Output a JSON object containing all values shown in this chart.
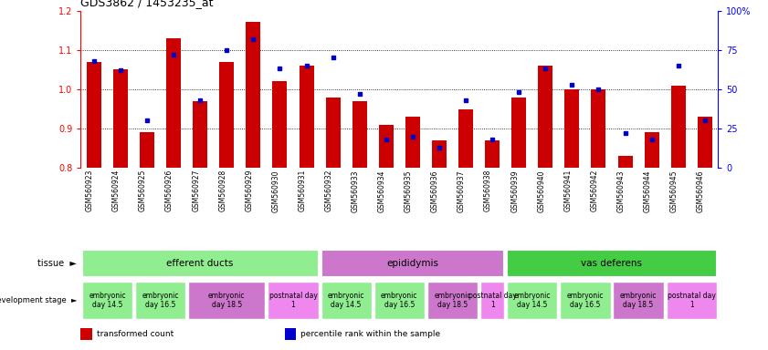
{
  "title": "GDS3862 / 1453235_at",
  "samples": [
    "GSM560923",
    "GSM560924",
    "GSM560925",
    "GSM560926",
    "GSM560927",
    "GSM560928",
    "GSM560929",
    "GSM560930",
    "GSM560931",
    "GSM560932",
    "GSM560933",
    "GSM560934",
    "GSM560935",
    "GSM560936",
    "GSM560937",
    "GSM560938",
    "GSM560939",
    "GSM560940",
    "GSM560941",
    "GSM560942",
    "GSM560943",
    "GSM560944",
    "GSM560945",
    "GSM560946"
  ],
  "red_values": [
    1.07,
    1.05,
    0.89,
    1.13,
    0.97,
    1.07,
    1.17,
    1.02,
    1.06,
    0.98,
    0.97,
    0.91,
    0.93,
    0.87,
    0.95,
    0.87,
    0.98,
    1.06,
    1.0,
    1.0,
    0.83,
    0.89,
    1.01,
    0.93
  ],
  "blue_values": [
    0.68,
    0.62,
    0.3,
    0.72,
    0.43,
    0.75,
    0.82,
    0.63,
    0.65,
    0.7,
    0.47,
    0.18,
    0.2,
    0.13,
    0.43,
    0.18,
    0.48,
    0.63,
    0.53,
    0.5,
    0.22,
    0.18,
    0.65,
    0.3
  ],
  "ymin": 0.8,
  "ymax": 1.2,
  "yticks": [
    0.8,
    0.9,
    1.0,
    1.1,
    1.2
  ],
  "right_yticks": [
    0,
    25,
    50,
    75,
    100
  ],
  "right_ytick_labels": [
    "0",
    "25",
    "50",
    "75",
    "100%"
  ],
  "tissues": [
    {
      "label": "efferent ducts",
      "start": 0,
      "end": 9,
      "color": "#90ee90"
    },
    {
      "label": "epididymis",
      "start": 9,
      "end": 16,
      "color": "#cc77cc"
    },
    {
      "label": "vas deferens",
      "start": 16,
      "end": 24,
      "color": "#44cc44"
    }
  ],
  "dev_stages": [
    {
      "label": "embryonic\nday 14.5",
      "start": 0,
      "end": 2,
      "color": "#90ee90"
    },
    {
      "label": "embryonic\nday 16.5",
      "start": 2,
      "end": 4,
      "color": "#90ee90"
    },
    {
      "label": "embryonic\nday 18.5",
      "start": 4,
      "end": 7,
      "color": "#cc77cc"
    },
    {
      "label": "postnatal day\n1",
      "start": 7,
      "end": 9,
      "color": "#ee88ee"
    },
    {
      "label": "embryonic\nday 14.5",
      "start": 9,
      "end": 11,
      "color": "#90ee90"
    },
    {
      "label": "embryonic\nday 16.5",
      "start": 11,
      "end": 13,
      "color": "#90ee90"
    },
    {
      "label": "embryonic\nday 18.5",
      "start": 13,
      "end": 15,
      "color": "#cc77cc"
    },
    {
      "label": "postnatal day\n1",
      "start": 15,
      "end": 16,
      "color": "#ee88ee"
    },
    {
      "label": "embryonic\nday 14.5",
      "start": 16,
      "end": 18,
      "color": "#90ee90"
    },
    {
      "label": "embryonic\nday 16.5",
      "start": 18,
      "end": 20,
      "color": "#90ee90"
    },
    {
      "label": "embryonic\nday 18.5",
      "start": 20,
      "end": 22,
      "color": "#cc77cc"
    },
    {
      "label": "postnatal day\n1",
      "start": 22,
      "end": 24,
      "color": "#ee88ee"
    }
  ],
  "bar_color": "#cc0000",
  "blue_color": "#0000cc",
  "background": "#ffffff",
  "legend": [
    {
      "color": "#cc0000",
      "label": "transformed count"
    },
    {
      "color": "#0000cc",
      "label": "percentile rank within the sample"
    }
  ]
}
